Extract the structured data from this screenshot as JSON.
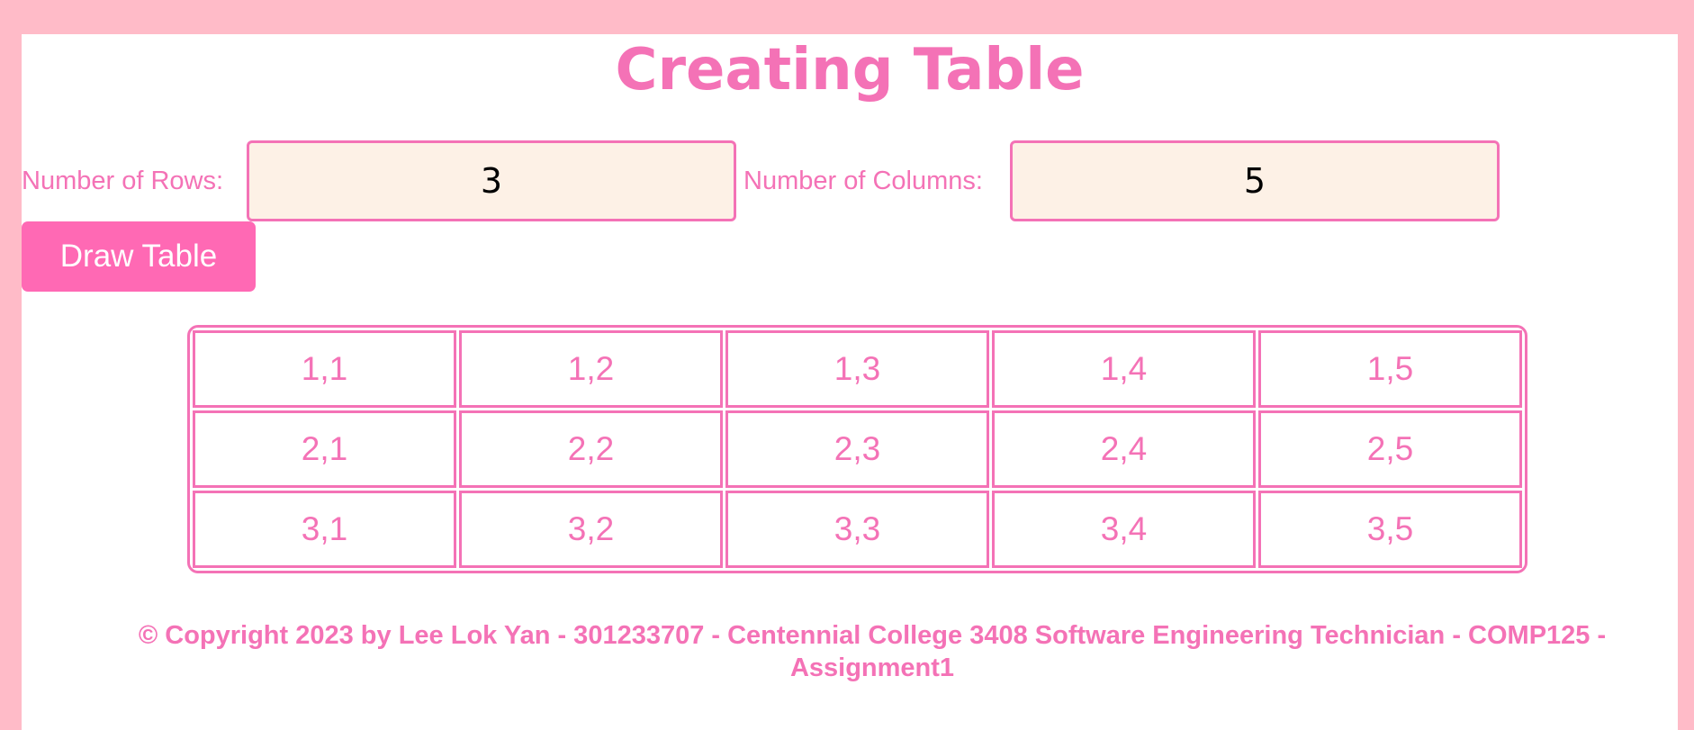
{
  "page": {
    "title": "Creating Table"
  },
  "form": {
    "rows_label": "Number of Rows:",
    "rows_value": "3",
    "cols_label": "Number of Columns:",
    "cols_value": "5",
    "draw_button_label": "Draw Table"
  },
  "table": {
    "rows": [
      [
        "1,1",
        "1,2",
        "1,3",
        "1,4",
        "1,5"
      ],
      [
        "2,1",
        "2,2",
        "2,3",
        "2,4",
        "2,5"
      ],
      [
        "3,1",
        "3,2",
        "3,3",
        "3,4",
        "3,5"
      ]
    ]
  },
  "footer": {
    "text": "© Copyright 2023 by Lee Lok Yan - 301233707 - Centennial College 3408 Software Engineering Technician - COMP125 - Assignment1"
  },
  "colors": {
    "page_bg": "#ffbbc8",
    "accent": "#f472b6",
    "button_bg": "#ff69b4",
    "input_bg": "#fdf1e6"
  }
}
